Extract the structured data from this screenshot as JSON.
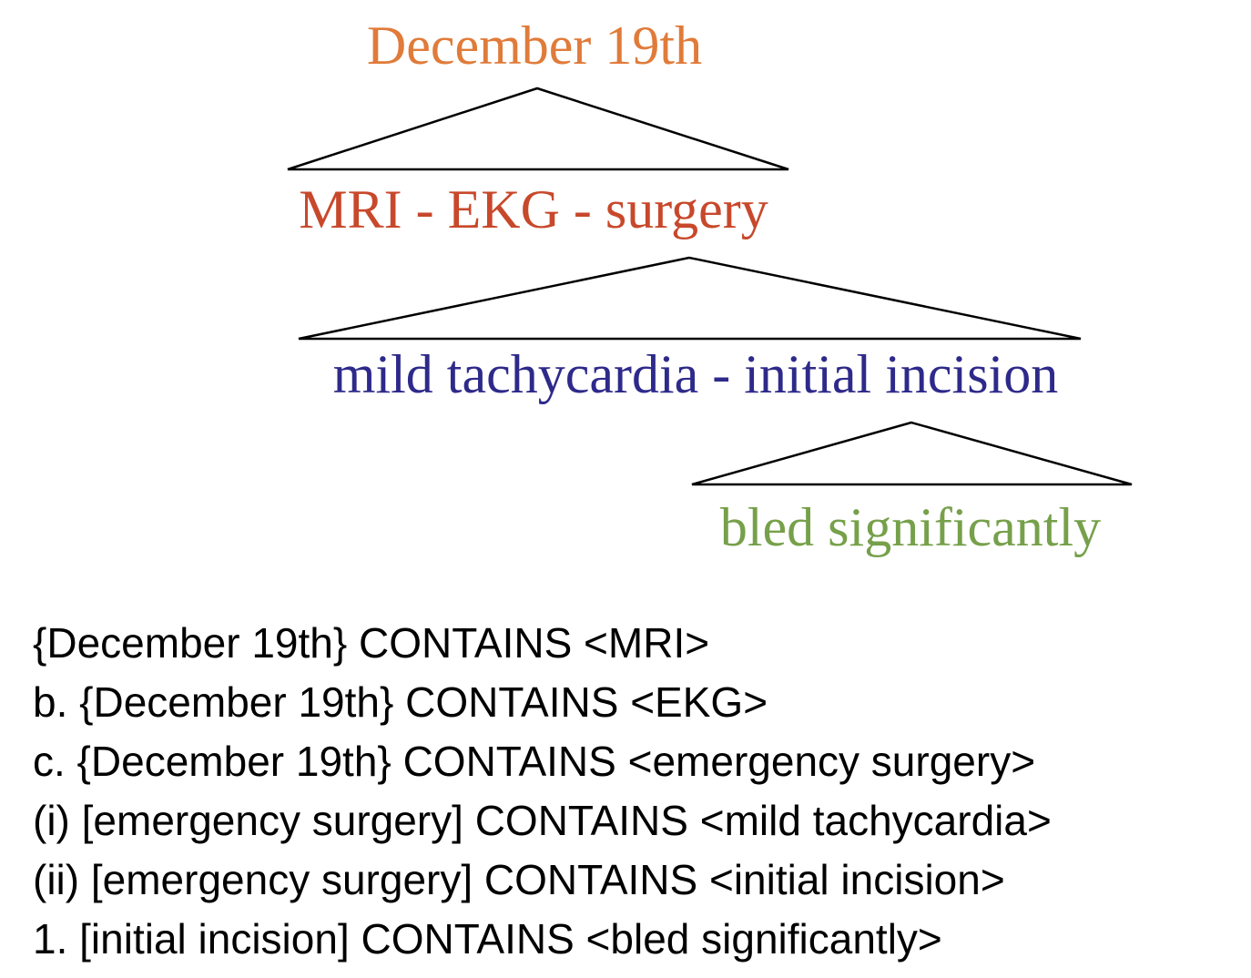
{
  "tree": {
    "nodes": [
      {
        "id": "node-december",
        "label": "December 19th",
        "color": "#e07b3a"
      },
      {
        "id": "node-procedures",
        "label": "MRI - EKG - surgery",
        "color": "#c8482b"
      },
      {
        "id": "node-surgery-events",
        "label": "mild tachycardia - initial incision",
        "color": "#2e2a8a"
      },
      {
        "id": "node-incision-events",
        "label": "bled significantly",
        "color": "#76a04a"
      }
    ],
    "edges": [
      {
        "from": "node-december",
        "to": "node-procedures"
      },
      {
        "from": "node-procedures",
        "to": "node-surgery-events"
      },
      {
        "from": "node-surgery-events",
        "to": "node-incision-events"
      }
    ]
  },
  "relations": [
    "{December 19th} CONTAINS <MRI>",
    "b. {December 19th} CONTAINS <EKG>",
    "c. {December 19th} CONTAINS <emergency surgery>",
    "(i) [emergency surgery] CONTAINS <mild tachycardia>",
    "(ii) [emergency surgery] CONTAINS <initial incision>",
    "1. [initial incision] CONTAINS <bled significantly>"
  ]
}
